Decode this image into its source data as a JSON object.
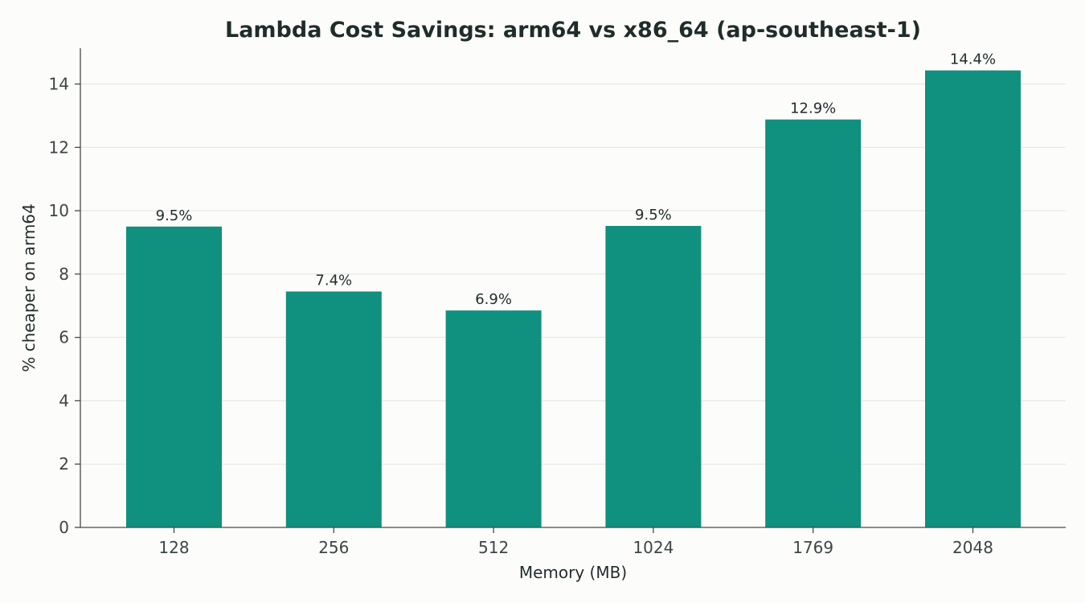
{
  "chart_data": {
    "type": "bar",
    "title": "Lambda Cost Savings: arm64 vs x86_64 (ap-southeast-1)",
    "xlabel": "Memory (MB)",
    "ylabel": "% cheaper on arm64",
    "categories": [
      "128",
      "256",
      "512",
      "1024",
      "1769",
      "2048"
    ],
    "values": [
      9.5,
      7.45,
      6.85,
      9.52,
      12.88,
      14.43
    ],
    "data_labels": [
      "9.5%",
      "7.4%",
      "6.9%",
      "9.5%",
      "12.9%",
      "14.4%"
    ],
    "ylim": [
      0,
      15.13
    ],
    "yticks": [
      0,
      2,
      4,
      6,
      8,
      10,
      12,
      14
    ],
    "grid": true,
    "bar_color": "#10907e"
  }
}
